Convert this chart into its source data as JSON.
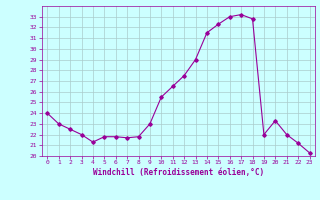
{
  "x": [
    0,
    1,
    2,
    3,
    4,
    5,
    6,
    7,
    8,
    9,
    10,
    11,
    12,
    13,
    14,
    15,
    16,
    17,
    18,
    19,
    20,
    21,
    22,
    23
  ],
  "y": [
    24.0,
    23.0,
    22.5,
    22.0,
    21.3,
    21.8,
    21.8,
    21.7,
    21.8,
    23.0,
    25.5,
    26.5,
    27.5,
    29.0,
    31.5,
    32.3,
    33.0,
    33.2,
    32.8,
    22.0,
    23.3,
    22.0,
    21.2,
    20.3
  ],
  "line_color": "#990099",
  "marker": "D",
  "marker_size": 1.8,
  "bg_color": "#ccffff",
  "grid_color": "#aacccc",
  "xlabel": "Windchill (Refroidissement éolien,°C)",
  "xlabel_color": "#990099",
  "tick_color": "#990099",
  "ylim": [
    20,
    34
  ],
  "yticks": [
    20,
    21,
    22,
    23,
    24,
    25,
    26,
    27,
    28,
    29,
    30,
    31,
    32,
    33
  ],
  "xlim": [
    -0.5,
    23.5
  ],
  "xticks": [
    0,
    1,
    2,
    3,
    4,
    5,
    6,
    7,
    8,
    9,
    10,
    11,
    12,
    13,
    14,
    15,
    16,
    17,
    18,
    19,
    20,
    21,
    22,
    23
  ]
}
